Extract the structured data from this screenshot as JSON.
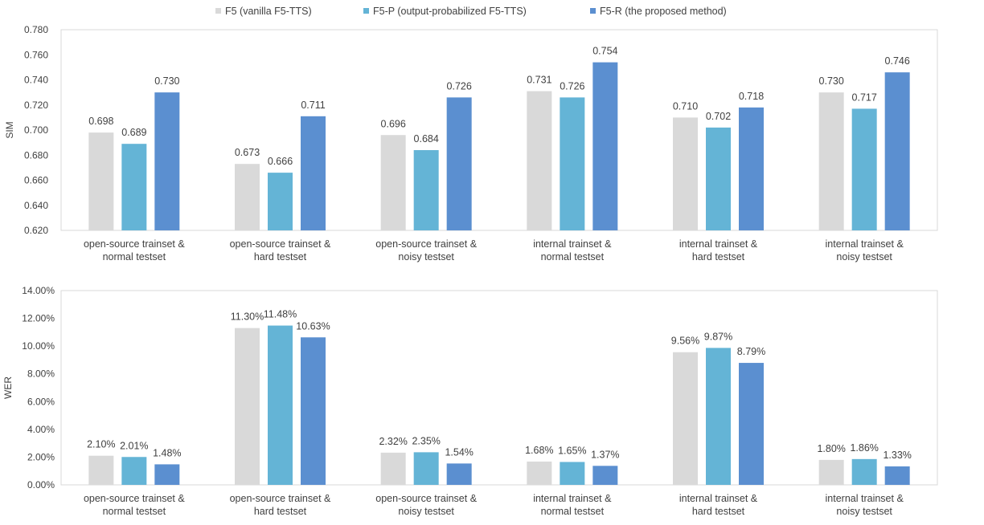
{
  "legend": [
    {
      "label": "F5 (vanilla F5-TTS)",
      "color": "#d9d9d9"
    },
    {
      "label": "F5-P (output-probabilized F5-TTS)",
      "color": "#64b4d6"
    },
    {
      "label": "F5-R (the proposed method)",
      "color": "#5b8fd0"
    }
  ],
  "chart_data": [
    {
      "type": "bar",
      "ylabel": "SIM",
      "ylim": [
        0.62,
        0.78
      ],
      "yticks": [
        "0.620",
        "0.640",
        "0.660",
        "0.680",
        "0.700",
        "0.720",
        "0.740",
        "0.760",
        "0.780"
      ],
      "categories": [
        [
          "open-source trainset &",
          "normal testset"
        ],
        [
          "open-source trainset &",
          "hard testset"
        ],
        [
          "open-source trainset &",
          "noisy testset"
        ],
        [
          "internal trainset &",
          "normal testset"
        ],
        [
          "internal trainset &",
          "hard testset"
        ],
        [
          "internal trainset &",
          "noisy testset"
        ]
      ],
      "series": [
        {
          "name": "F5 (vanilla F5-TTS)",
          "values": [
            0.698,
            0.673,
            0.696,
            0.731,
            0.71,
            0.73
          ],
          "labels": [
            "0.698",
            "0.673",
            "0.696",
            "0.731",
            "0.710",
            "0.730"
          ]
        },
        {
          "name": "F5-P (output-probabilized F5-TTS)",
          "values": [
            0.689,
            0.666,
            0.684,
            0.726,
            0.702,
            0.717
          ],
          "labels": [
            "0.689",
            "0.666",
            "0.684",
            "0.726",
            "0.702",
            "0.717"
          ]
        },
        {
          "name": "F5-R (the proposed method)",
          "values": [
            0.73,
            0.711,
            0.726,
            0.754,
            0.718,
            0.746
          ],
          "labels": [
            "0.730",
            "0.711",
            "0.726",
            "0.754",
            "0.718",
            "0.746"
          ]
        }
      ]
    },
    {
      "type": "bar",
      "ylabel": "WER",
      "ylim": [
        0,
        14
      ],
      "yticks": [
        "0.00%",
        "2.00%",
        "4.00%",
        "6.00%",
        "8.00%",
        "10.00%",
        "12.00%",
        "14.00%"
      ],
      "categories": [
        [
          "open-source trainset &",
          "normal testset"
        ],
        [
          "open-source trainset &",
          "hard testset"
        ],
        [
          "open-source trainset &",
          "noisy testset"
        ],
        [
          "internal trainset &",
          "normal testset"
        ],
        [
          "internal trainset &",
          "hard testset"
        ],
        [
          "internal trainset &",
          "noisy testset"
        ]
      ],
      "series": [
        {
          "name": "F5 (vanilla F5-TTS)",
          "values": [
            2.1,
            11.3,
            2.32,
            1.68,
            9.56,
            1.8
          ],
          "labels": [
            "2.10%",
            "11.30%",
            "2.32%",
            "1.68%",
            "9.56%",
            "1.80%"
          ]
        },
        {
          "name": "F5-P (output-probabilized F5-TTS)",
          "values": [
            2.01,
            11.48,
            2.35,
            1.65,
            9.87,
            1.86
          ],
          "labels": [
            "2.01%",
            "11.48%",
            "2.35%",
            "1.65%",
            "9.87%",
            "1.86%"
          ]
        },
        {
          "name": "F5-R (the proposed method)",
          "values": [
            1.48,
            10.63,
            1.54,
            1.37,
            8.79,
            1.33
          ],
          "labels": [
            "1.48%",
            "10.63%",
            "1.54%",
            "1.37%",
            "8.79%",
            "1.33%"
          ]
        }
      ]
    }
  ]
}
